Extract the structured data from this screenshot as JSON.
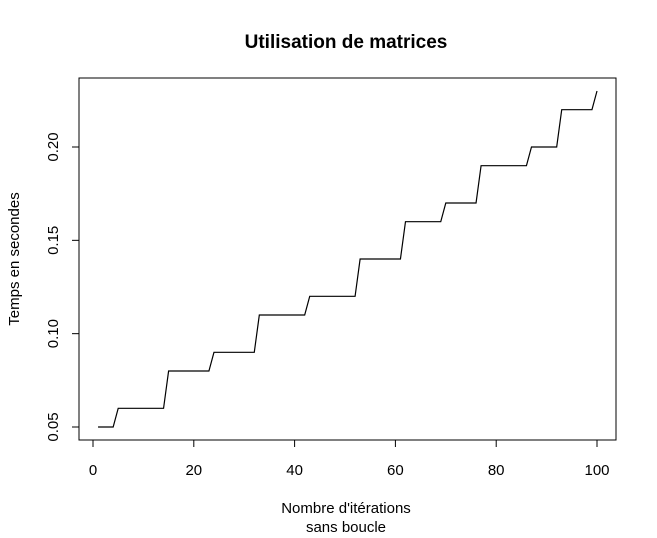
{
  "chart_data": {
    "type": "line",
    "title": "Utilisation de matrices",
    "xlabel": [
      "Nombre d'itérations",
      "sans boucle"
    ],
    "ylabel": "Temps en secondes",
    "xlim": [
      1,
      100
    ],
    "ylim": [
      0.05,
      0.23
    ],
    "xticks": [
      0,
      20,
      40,
      60,
      80,
      100
    ],
    "xtick_labels": [
      "0",
      "20",
      "40",
      "60",
      "80",
      "100"
    ],
    "yticks": [
      0.05,
      0.1,
      0.15,
      0.2
    ],
    "ytick_labels": [
      "0.05",
      "0.10",
      "0.15",
      "0.20"
    ],
    "grid": false,
    "series": [
      {
        "color": "#000000",
        "x": [
          1,
          2,
          3,
          4,
          5,
          6,
          7,
          8,
          9,
          10,
          11,
          12,
          13,
          14,
          15,
          16,
          17,
          18,
          19,
          20,
          21,
          22,
          23,
          24,
          25,
          26,
          27,
          28,
          29,
          30,
          31,
          32,
          33,
          34,
          35,
          36,
          37,
          38,
          39,
          40,
          41,
          42,
          43,
          44,
          45,
          46,
          47,
          48,
          49,
          50,
          51,
          52,
          53,
          54,
          55,
          56,
          57,
          58,
          59,
          60,
          61,
          62,
          63,
          64,
          65,
          66,
          67,
          68,
          69,
          70,
          71,
          72,
          73,
          74,
          75,
          76,
          77,
          78,
          79,
          80,
          81,
          82,
          83,
          84,
          85,
          86,
          87,
          88,
          89,
          90,
          91,
          92,
          93,
          94,
          95,
          96,
          97,
          98,
          99,
          100
        ],
        "y": [
          0.05,
          0.05,
          0.05,
          0.05,
          0.06,
          0.06,
          0.06,
          0.06,
          0.06,
          0.06,
          0.06,
          0.06,
          0.06,
          0.06,
          0.08,
          0.08,
          0.08,
          0.08,
          0.08,
          0.08,
          0.08,
          0.08,
          0.08,
          0.09,
          0.09,
          0.09,
          0.09,
          0.09,
          0.09,
          0.09,
          0.09,
          0.09,
          0.11,
          0.11,
          0.11,
          0.11,
          0.11,
          0.11,
          0.11,
          0.11,
          0.11,
          0.11,
          0.12,
          0.12,
          0.12,
          0.12,
          0.12,
          0.12,
          0.12,
          0.12,
          0.12,
          0.12,
          0.14,
          0.14,
          0.14,
          0.14,
          0.14,
          0.14,
          0.14,
          0.14,
          0.14,
          0.16,
          0.16,
          0.16,
          0.16,
          0.16,
          0.16,
          0.16,
          0.16,
          0.17,
          0.17,
          0.17,
          0.17,
          0.17,
          0.17,
          0.17,
          0.19,
          0.19,
          0.19,
          0.19,
          0.19,
          0.19,
          0.19,
          0.19,
          0.19,
          0.19,
          0.2,
          0.2,
          0.2,
          0.2,
          0.2,
          0.2,
          0.22,
          0.22,
          0.22,
          0.22,
          0.22,
          0.22,
          0.22,
          0.23
        ]
      }
    ]
  }
}
